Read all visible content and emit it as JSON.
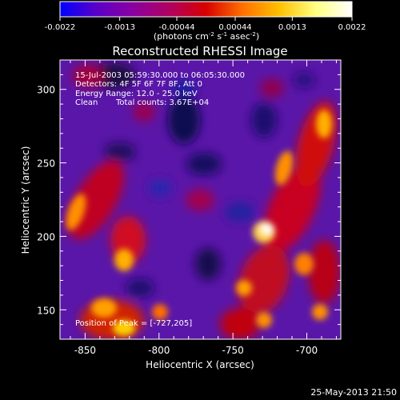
{
  "colorbar": {
    "tick_labels": [
      "-0.0022",
      "-0.0013",
      "-0.00044",
      "0.00044",
      "0.0013",
      "0.0022"
    ],
    "tick_values": [
      -0.0022,
      -0.0013,
      -0.00044,
      0.00044,
      0.0013,
      0.0022
    ],
    "unit_main": "(photons cm",
    "unit_sup1": "-2",
    "unit_mid1": " s",
    "unit_sup2": "-1",
    "unit_mid2": " asec",
    "unit_sup3": "-2",
    "unit_end": ")",
    "colors": [
      "#0000ff",
      "#5a00c8",
      "#8a00a0",
      "#b00060",
      "#d80000",
      "#ff7000",
      "#ffc000",
      "#ffff80",
      "#ffffff"
    ]
  },
  "title": "Reconstructed RHESSI Image",
  "info": {
    "line1": "15-Jul-2003 05:59:30.000 to 06:05:30.000",
    "line2": "Detectors: 4F 5F 6F 7F 8F, Att 0",
    "line3": "Energy Range: 12.0 - 25.0 keV",
    "line4a": "Clean",
    "line4b": "Total counts: 3.67E+04",
    "peak": "Position of Peak = [-727,205]"
  },
  "footer_timestamp": "25-May-2013 21:50",
  "chart_data": {
    "type": "heatmap",
    "title": "Reconstructed RHESSI Image",
    "xlabel": "Heliocentric X (arcsec)",
    "ylabel": "Heliocentric Y (arcsec)",
    "xlim": [
      -867,
      -677
    ],
    "ylim": [
      130,
      320
    ],
    "x_ticks": [
      -850,
      -800,
      -750,
      -700
    ],
    "y_ticks": [
      150,
      200,
      250,
      300
    ],
    "x_tick_labels": [
      "-850",
      "-800",
      "-750",
      "-700"
    ],
    "y_tick_labels": [
      "150",
      "200",
      "250",
      "300"
    ],
    "peak_position": [
      -727,
      205
    ],
    "color_range": [
      -0.0022,
      0.0022
    ]
  }
}
